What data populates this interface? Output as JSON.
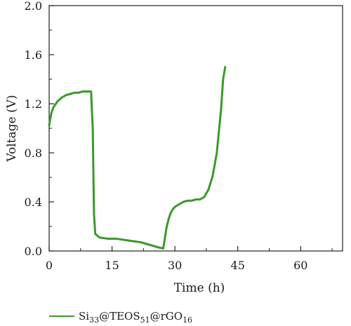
{
  "chart_data": {
    "type": "line",
    "xlabel": "Time (h)",
    "ylabel": "Voltage (V)",
    "xlim": [
      0,
      70
    ],
    "ylim": [
      0,
      2.0
    ],
    "x_ticks": [
      0,
      15,
      30,
      45,
      60
    ],
    "y_ticks": [
      0.0,
      0.4,
      0.8,
      1.2,
      1.6,
      2.0
    ],
    "x_tick_labels": [
      "0",
      "15",
      "30",
      "45",
      "60"
    ],
    "y_tick_labels": [
      "0.0",
      "0.4",
      "0.8",
      "1.2",
      "1.6",
      "2.0"
    ],
    "grid": false,
    "legend_position": "bottom-left",
    "series": [
      {
        "name": "Si33@TEOS51@rGO16",
        "color": "#3a9a2a",
        "x": [
          0,
          0.5,
          1,
          2,
          3,
          4,
          5,
          6,
          7,
          8,
          9,
          10,
          10.4,
          10.7,
          11,
          12,
          14,
          16,
          18,
          20,
          22,
          24,
          26,
          27.2,
          27.5,
          28,
          28.5,
          29,
          29.5,
          30,
          31,
          32,
          33,
          34,
          35,
          36,
          37,
          38,
          39,
          40,
          41,
          41.5,
          42
        ],
        "y": [
          1.02,
          1.12,
          1.17,
          1.22,
          1.25,
          1.27,
          1.28,
          1.29,
          1.29,
          1.3,
          1.3,
          1.3,
          1.0,
          0.3,
          0.14,
          0.11,
          0.1,
          0.1,
          0.09,
          0.08,
          0.07,
          0.05,
          0.03,
          0.02,
          0.08,
          0.19,
          0.26,
          0.31,
          0.34,
          0.36,
          0.38,
          0.4,
          0.41,
          0.41,
          0.42,
          0.42,
          0.44,
          0.5,
          0.61,
          0.8,
          1.15,
          1.4,
          1.5
        ]
      }
    ],
    "legend": {
      "label_main": "Si",
      "label_sub1": "33",
      "label_mid": "@TEOS",
      "label_sub2": "51",
      "label_mid2": "@rGO",
      "label_sub3": "16"
    }
  }
}
